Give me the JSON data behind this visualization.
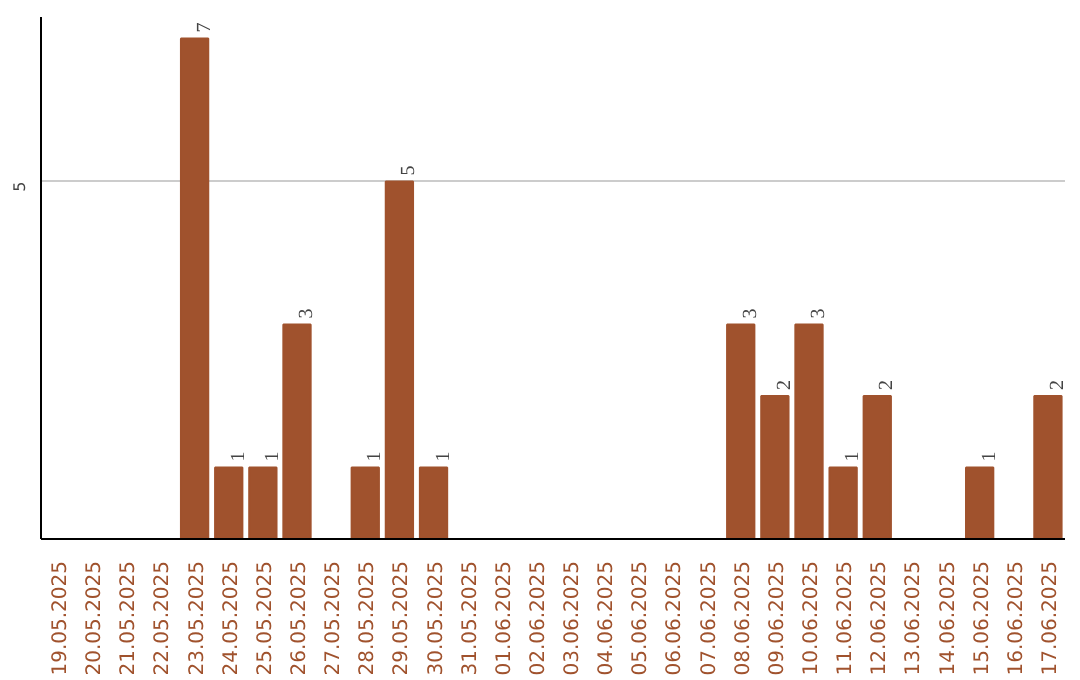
{
  "chart_data": {
    "type": "bar",
    "categories": [
      "19.05.2025",
      "20.05.2025",
      "21.05.2025",
      "22.05.2025",
      "23.05.2025",
      "24.05.2025",
      "25.05.2025",
      "26.05.2025",
      "27.05.2025",
      "28.05.2025",
      "29.05.2025",
      "30.05.2025",
      "31.05.2025",
      "01.06.2025",
      "02.06.2025",
      "03.06.2025",
      "04.06.2025",
      "05.06.2025",
      "06.06.2025",
      "07.06.2025",
      "08.06.2025",
      "09.06.2025",
      "10.06.2025",
      "11.06.2025",
      "12.06.2025",
      "13.06.2025",
      "14.06.2025",
      "15.06.2025",
      "16.06.2025",
      "17.06.2025"
    ],
    "values": [
      0,
      0,
      0,
      0,
      7,
      1,
      1,
      3,
      0,
      1,
      5,
      1,
      0,
      0,
      0,
      0,
      0,
      0,
      0,
      0,
      3,
      2,
      3,
      1,
      2,
      0,
      0,
      1,
      0,
      2
    ],
    "value_labels": [
      null,
      null,
      null,
      null,
      "7",
      "1",
      "1",
      "3",
      null,
      "1",
      "5",
      "1",
      null,
      null,
      null,
      null,
      null,
      null,
      null,
      null,
      "3",
      "2",
      "3",
      "1",
      "2",
      null,
      null,
      "1",
      null,
      "2"
    ],
    "color": "#a0522d",
    "ylim": [
      0,
      7.3
    ],
    "yticks": [
      5
    ],
    "grid": "y"
  }
}
